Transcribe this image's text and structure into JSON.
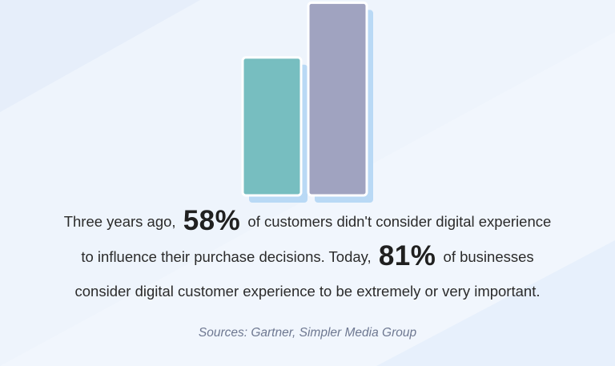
{
  "chart_data": {
    "type": "bar",
    "categories": [
      "Three years ago",
      "Today"
    ],
    "values": [
      58,
      81
    ],
    "ylim": [
      0,
      100
    ],
    "colors": [
      "#77bec0",
      "#a0a3c0"
    ],
    "shadow_color": "#b9d9f5",
    "border_color": "#ffffff",
    "grid": false,
    "axes_visible": false
  },
  "statement": {
    "line1_a": "Three years ago,",
    "stat1": "58%",
    "line1_b": "of customers didn't consider digital experience",
    "line2_a": "to influence their purchase decisions.  Today,",
    "stat2": "81%",
    "line2_b": "of businesses",
    "line3": "consider digital customer experience to be extremely or very important."
  },
  "sources": "Sources: Gartner, Simpler Media Group",
  "colors": {
    "background": "#eef4fc",
    "text": "#2b2b2b",
    "sources_text": "#6e7891"
  }
}
